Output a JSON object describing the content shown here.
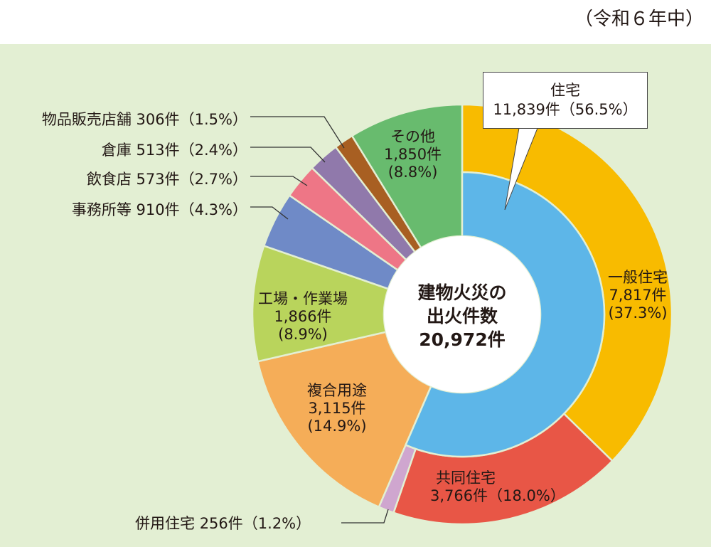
{
  "note": "（令和６年中）",
  "chart_data": {
    "type": "pie",
    "title": "",
    "center_label": {
      "line1": "建物火災の",
      "line2": "出火件数",
      "total": "20,972件"
    },
    "inner_ring": [
      {
        "name": "住宅",
        "count": "11,839件",
        "percent": 56.5,
        "percent_label": "（56.5%）",
        "color": "#5db6e8"
      }
    ],
    "outer_ring": [
      {
        "name": "一般住宅",
        "count": "7,817件",
        "percent": 37.3,
        "percent_label": "(37.3%)",
        "color": "#f8bb00"
      },
      {
        "name": "共同住宅",
        "count": "3,766件",
        "percent": 18.0,
        "percent_label": "（18.0%）",
        "color": "#e85646"
      },
      {
        "name": "併用住宅",
        "count": "256件",
        "percent": 1.2,
        "percent_label": "（1.2%）",
        "color": "#cfa6cf"
      },
      {
        "name": "複合用途",
        "count": "3,115件",
        "percent": 14.9,
        "percent_label": "(14.9%)",
        "color": "#f5ad58"
      },
      {
        "name": "工場・作業場",
        "count": "1,866件",
        "percent": 8.9,
        "percent_label": "(8.9%)",
        "color": "#b9d45c"
      },
      {
        "name": "事務所等",
        "count": "910件",
        "percent": 4.3,
        "percent_label": "（4.3%）",
        "color": "#6f8ac7"
      },
      {
        "name": "飲食店",
        "count": "573件",
        "percent": 2.7,
        "percent_label": "（2.7%）",
        "color": "#ee7686"
      },
      {
        "name": "倉庫",
        "count": "513件",
        "percent": 2.4,
        "percent_label": "（2.4%）",
        "color": "#9079ab"
      },
      {
        "name": "物品販売店舗",
        "count": "306件",
        "percent": 1.5,
        "percent_label": "（1.5%）",
        "color": "#a85f22"
      },
      {
        "name": "その他",
        "count": "1,850件",
        "percent": 8.8,
        "percent_label": "(8.8%)",
        "color": "#68bb6e"
      }
    ]
  }
}
